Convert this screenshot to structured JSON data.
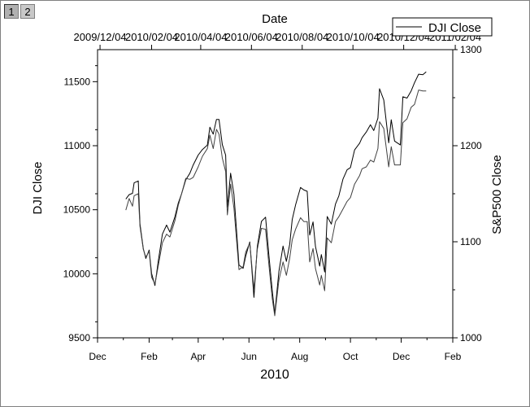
{
  "window": {
    "tabs": [
      {
        "label": "1"
      },
      {
        "label": "2"
      }
    ]
  },
  "chart_data": {
    "type": "line",
    "title": "",
    "xlabel": "2010",
    "x_top_label": "Date",
    "ylabel": "DJI Close",
    "y2label": "S&P500 Close",
    "ylim": [
      9500,
      11750
    ],
    "y2lim": [
      1000,
      1300
    ],
    "legend": {
      "placement": "top-right",
      "entries": [
        "DJI Close"
      ]
    },
    "grid": false,
    "x_bottom_ticks": [
      "Dec",
      "Feb",
      "Apr",
      "Jun",
      "Aug",
      "Oct",
      "Dec",
      "Feb"
    ],
    "x_top_ticks": [
      "2009/12/04",
      "2010/02/04",
      "2010/04/04",
      "2010/06/04",
      "2010/08/04",
      "2010/10/04",
      "2010/12/04",
      "2011/02/04"
    ],
    "y_ticks": [
      9500,
      10000,
      10500,
      11000,
      11500
    ],
    "y2_ticks": [
      1000,
      1100,
      1200,
      1300
    ],
    "series": [
      {
        "name": "DJI Close",
        "axis": "left",
        "points": [
          [
            "2010-01-04",
            10583
          ],
          [
            "2010-01-08",
            10618
          ],
          [
            "2010-01-12",
            10628
          ],
          [
            "2010-01-14",
            10710
          ],
          [
            "2010-01-19",
            10725
          ],
          [
            "2010-01-21",
            10390
          ],
          [
            "2010-01-25",
            10196
          ],
          [
            "2010-01-28",
            10120
          ],
          [
            "2010-02-01",
            10185
          ],
          [
            "2010-02-04",
            10002
          ],
          [
            "2010-02-08",
            9908
          ],
          [
            "2010-02-12",
            10099
          ],
          [
            "2010-02-17",
            10310
          ],
          [
            "2010-02-22",
            10380
          ],
          [
            "2010-02-26",
            10325
          ],
          [
            "2010-03-04",
            10445
          ],
          [
            "2010-03-08",
            10552
          ],
          [
            "2010-03-12",
            10625
          ],
          [
            "2010-03-17",
            10733
          ],
          [
            "2010-03-22",
            10785
          ],
          [
            "2010-03-26",
            10850
          ],
          [
            "2010-04-01",
            10927
          ],
          [
            "2010-04-06",
            10970
          ],
          [
            "2010-04-12",
            11005
          ],
          [
            "2010-04-15",
            11144
          ],
          [
            "2010-04-19",
            11090
          ],
          [
            "2010-04-23",
            11205
          ],
          [
            "2010-04-26",
            11205
          ],
          [
            "2010-04-30",
            11008
          ],
          [
            "2010-05-04",
            10926
          ],
          [
            "2010-05-06",
            10520
          ],
          [
            "2010-05-10",
            10785
          ],
          [
            "2010-05-14",
            10620
          ],
          [
            "2010-05-20",
            10068
          ],
          [
            "2010-05-25",
            10043
          ],
          [
            "2010-05-28",
            10136
          ],
          [
            "2010-06-02",
            10249
          ],
          [
            "2010-06-07",
            9816
          ],
          [
            "2010-06-11",
            10211
          ],
          [
            "2010-06-16",
            10409
          ],
          [
            "2010-06-21",
            10442
          ],
          [
            "2010-06-25",
            10143
          ],
          [
            "2010-06-29",
            9870
          ],
          [
            "2010-07-02",
            9686
          ],
          [
            "2010-07-07",
            10018
          ],
          [
            "2010-07-12",
            10216
          ],
          [
            "2010-07-16",
            10097
          ],
          [
            "2010-07-20",
            10230
          ],
          [
            "2010-07-23",
            10424
          ],
          [
            "2010-07-27",
            10537
          ],
          [
            "2010-08-02",
            10674
          ],
          [
            "2010-08-06",
            10654
          ],
          [
            "2010-08-10",
            10644
          ],
          [
            "2010-08-13",
            10303
          ],
          [
            "2010-08-17",
            10405
          ],
          [
            "2010-08-20",
            10213
          ],
          [
            "2010-08-25",
            10060
          ],
          [
            "2010-08-27",
            10150
          ],
          [
            "2010-08-31",
            10014
          ],
          [
            "2010-09-03",
            10447
          ],
          [
            "2010-09-08",
            10388
          ],
          [
            "2010-09-13",
            10544
          ],
          [
            "2010-09-17",
            10607
          ],
          [
            "2010-09-22",
            10739
          ],
          [
            "2010-09-27",
            10812
          ],
          [
            "2010-10-01",
            10829
          ],
          [
            "2010-10-06",
            10967
          ],
          [
            "2010-10-12",
            11020
          ],
          [
            "2010-10-15",
            11062
          ],
          [
            "2010-10-20",
            11107
          ],
          [
            "2010-10-25",
            11164
          ],
          [
            "2010-10-29",
            11118
          ],
          [
            "2010-11-03",
            11215
          ],
          [
            "2010-11-05",
            11445
          ],
          [
            "2010-11-10",
            11357
          ],
          [
            "2010-11-16",
            11023
          ],
          [
            "2010-11-19",
            11203
          ],
          [
            "2010-11-23",
            11036
          ],
          [
            "2010-11-30",
            11006
          ],
          [
            "2010-12-03",
            11382
          ],
          [
            "2010-12-08",
            11372
          ],
          [
            "2010-12-13",
            11428
          ],
          [
            "2010-12-17",
            11491
          ],
          [
            "2010-12-22",
            11559
          ],
          [
            "2010-12-27",
            11555
          ],
          [
            "2010-12-31",
            11577
          ]
        ]
      },
      {
        "name": "",
        "axis": "right",
        "points": [
          [
            "2010-01-04",
            1133
          ],
          [
            "2010-01-08",
            1145
          ],
          [
            "2010-01-12",
            1137
          ],
          [
            "2010-01-14",
            1148
          ],
          [
            "2010-01-19",
            1150
          ],
          [
            "2010-01-21",
            1116
          ],
          [
            "2010-01-25",
            1092
          ],
          [
            "2010-01-28",
            1084
          ],
          [
            "2010-02-01",
            1090
          ],
          [
            "2010-02-04",
            1063
          ],
          [
            "2010-02-08",
            1056
          ],
          [
            "2010-02-12",
            1075
          ],
          [
            "2010-02-17",
            1099
          ],
          [
            "2010-02-22",
            1108
          ],
          [
            "2010-02-26",
            1105
          ],
          [
            "2010-03-04",
            1122
          ],
          [
            "2010-03-08",
            1138
          ],
          [
            "2010-03-12",
            1150
          ],
          [
            "2010-03-17",
            1166
          ],
          [
            "2010-03-22",
            1165
          ],
          [
            "2010-03-26",
            1167
          ],
          [
            "2010-04-01",
            1178
          ],
          [
            "2010-04-06",
            1189
          ],
          [
            "2010-04-12",
            1197
          ],
          [
            "2010-04-15",
            1211
          ],
          [
            "2010-04-19",
            1197
          ],
          [
            "2010-04-23",
            1217
          ],
          [
            "2010-04-26",
            1212
          ],
          [
            "2010-04-30",
            1187
          ],
          [
            "2010-05-04",
            1173
          ],
          [
            "2010-05-06",
            1128
          ],
          [
            "2010-05-10",
            1160
          ],
          [
            "2010-05-14",
            1135
          ],
          [
            "2010-05-20",
            1071
          ],
          [
            "2010-05-25",
            1074
          ],
          [
            "2010-05-28",
            1089
          ],
          [
            "2010-06-02",
            1099
          ],
          [
            "2010-06-07",
            1050
          ],
          [
            "2010-06-11",
            1092
          ],
          [
            "2010-06-16",
            1114
          ],
          [
            "2010-06-21",
            1113
          ],
          [
            "2010-06-25",
            1076
          ],
          [
            "2010-06-29",
            1041
          ],
          [
            "2010-07-02",
            1023
          ],
          [
            "2010-07-07",
            1060
          ],
          [
            "2010-07-12",
            1079
          ],
          [
            "2010-07-16",
            1065
          ],
          [
            "2010-07-20",
            1083
          ],
          [
            "2010-07-23",
            1102
          ],
          [
            "2010-07-27",
            1113
          ],
          [
            "2010-08-02",
            1125
          ],
          [
            "2010-08-06",
            1121
          ],
          [
            "2010-08-10",
            1121
          ],
          [
            "2010-08-13",
            1079
          ],
          [
            "2010-08-17",
            1093
          ],
          [
            "2010-08-20",
            1072
          ],
          [
            "2010-08-25",
            1055
          ],
          [
            "2010-08-27",
            1065
          ],
          [
            "2010-08-31",
            1049
          ],
          [
            "2010-09-03",
            1104
          ],
          [
            "2010-09-08",
            1099
          ],
          [
            "2010-09-13",
            1121
          ],
          [
            "2010-09-17",
            1126
          ],
          [
            "2010-09-22",
            1134
          ],
          [
            "2010-09-27",
            1142
          ],
          [
            "2010-10-01",
            1146
          ],
          [
            "2010-10-06",
            1160
          ],
          [
            "2010-10-12",
            1169
          ],
          [
            "2010-10-15",
            1176
          ],
          [
            "2010-10-20",
            1178
          ],
          [
            "2010-10-25",
            1185
          ],
          [
            "2010-10-29",
            1183
          ],
          [
            "2010-11-03",
            1197
          ],
          [
            "2010-11-05",
            1225
          ],
          [
            "2010-11-10",
            1218
          ],
          [
            "2010-11-16",
            1178
          ],
          [
            "2010-11-19",
            1199
          ],
          [
            "2010-11-23",
            1180
          ],
          [
            "2010-11-30",
            1180
          ],
          [
            "2010-12-03",
            1224
          ],
          [
            "2010-12-08",
            1228
          ],
          [
            "2010-12-13",
            1240
          ],
          [
            "2010-12-17",
            1243
          ],
          [
            "2010-12-22",
            1258
          ],
          [
            "2010-12-27",
            1257
          ],
          [
            "2010-12-31",
            1257
          ]
        ]
      }
    ]
  }
}
